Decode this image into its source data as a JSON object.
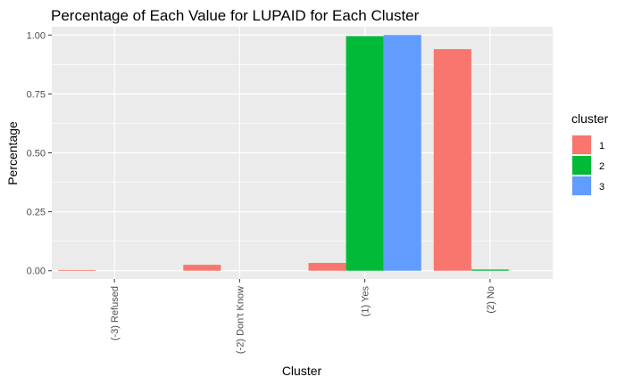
{
  "chart_data": {
    "type": "bar",
    "title": "Percentage of Each Value for LUPAID for Each Cluster",
    "xlabel": "Cluster",
    "ylabel": "Percentage",
    "categories": [
      "(-3) Refused",
      "(-2) Don't Know",
      "(1) Yes",
      "(2) No"
    ],
    "y_ticks": [
      "0.00",
      "0.25",
      "0.50",
      "0.75",
      "1.00"
    ],
    "ylim": [
      -0.035,
      1.035
    ],
    "grid": true,
    "legend": {
      "title": "cluster",
      "position": "right"
    },
    "series": [
      {
        "name": "1",
        "color": "#F8766D",
        "values": [
          0.003,
          0.025,
          0.033,
          0.94
        ]
      },
      {
        "name": "2",
        "color": "#00BA38",
        "values": [
          0.0,
          0.0,
          0.995,
          0.005
        ]
      },
      {
        "name": "3",
        "color": "#619CFF",
        "values": [
          0.0,
          0.0,
          1.0,
          0.0
        ]
      }
    ]
  }
}
